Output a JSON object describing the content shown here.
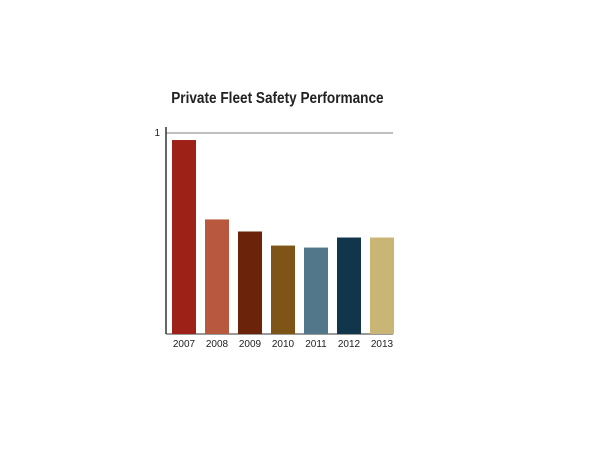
{
  "chart_data": {
    "type": "bar",
    "title": "Private Fleet Safety Performance",
    "xlabel": "",
    "ylabel": "",
    "categories": [
      "2007",
      "2008",
      "2009",
      "2010",
      "2011",
      "2012",
      "2013"
    ],
    "values": [
      0.965,
      0.57,
      0.51,
      0.44,
      0.43,
      0.48,
      0.48
    ],
    "colors": [
      "#9e2118",
      "#b8583e",
      "#6b2409",
      "#7e5417",
      "#52778a",
      "#11354a",
      "#c9b677"
    ],
    "ylim": [
      0,
      1
    ],
    "yticks": [
      "1"
    ],
    "grid": true
  }
}
